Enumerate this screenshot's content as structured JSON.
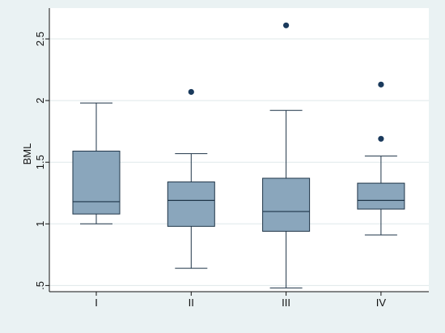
{
  "chart_data": {
    "type": "box",
    "title": "",
    "xlabel": "",
    "ylabel": "BML",
    "ylim": [
      0.45,
      2.75
    ],
    "yticks": [
      0.5,
      1,
      1.5,
      2,
      2.5
    ],
    "ytick_labels": [
      ".5",
      "1",
      "1.5",
      "2",
      "2.5"
    ],
    "grid": true,
    "colors": {
      "box_fill": "#8aa6bc",
      "box_stroke": "#1f3548",
      "outlier": "#1a3a5c",
      "plot_bg": "#ffffff",
      "page_bg": "#eaf2f3",
      "grid": "#dfe8ea"
    },
    "categories": [
      "I",
      "II",
      "III",
      "IV"
    ],
    "boxes": [
      {
        "category": "I",
        "whisker_low": 1.0,
        "q1": 1.08,
        "median": 1.18,
        "q3": 1.59,
        "whisker_high": 1.98,
        "outliers": []
      },
      {
        "category": "II",
        "whisker_low": 0.64,
        "q1": 0.98,
        "median": 1.19,
        "q3": 1.34,
        "whisker_high": 1.57,
        "outliers": [
          2.07
        ]
      },
      {
        "category": "III",
        "whisker_low": 0.48,
        "q1": 0.94,
        "median": 1.1,
        "q3": 1.37,
        "whisker_high": 1.92,
        "outliers": [
          2.61
        ]
      },
      {
        "category": "IV",
        "whisker_low": 0.91,
        "q1": 1.12,
        "median": 1.19,
        "q3": 1.33,
        "whisker_high": 1.55,
        "outliers": [
          1.69,
          2.13
        ]
      }
    ]
  }
}
